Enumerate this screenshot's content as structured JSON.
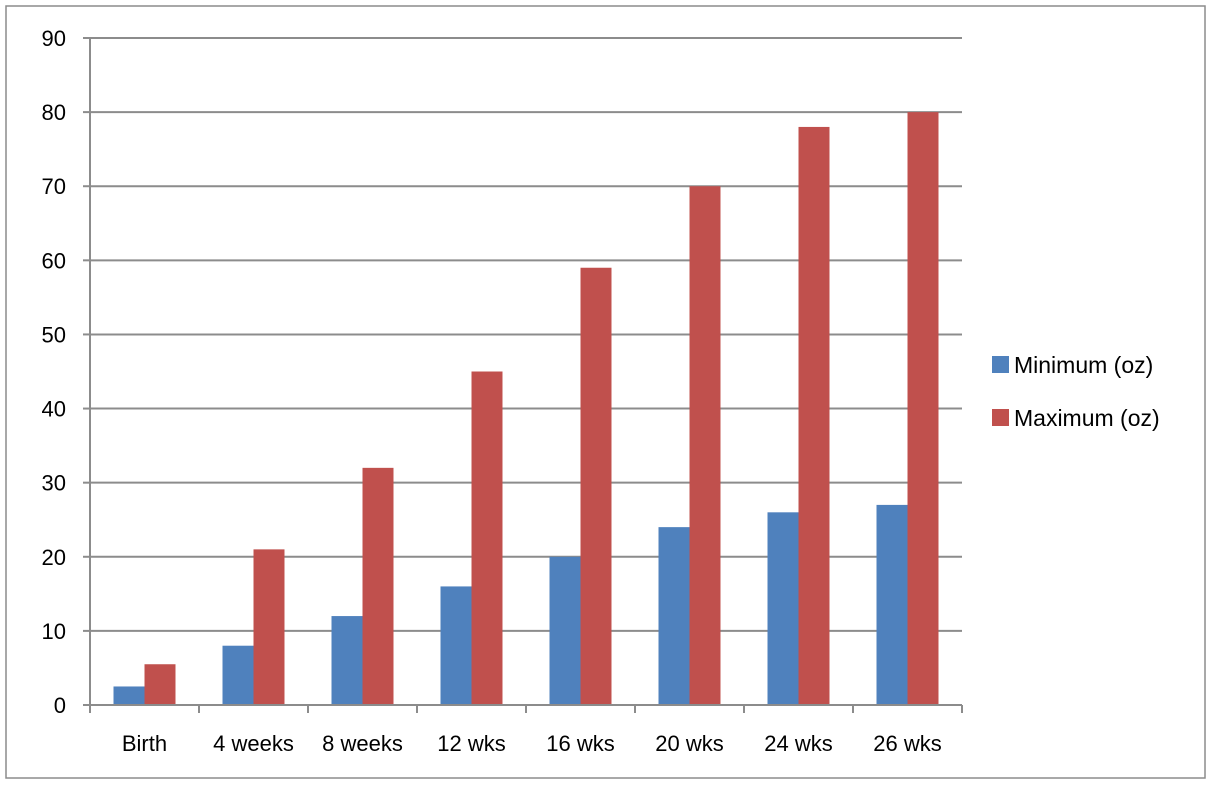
{
  "chart_data": {
    "type": "bar",
    "categories": [
      "Birth",
      "4 weeks",
      "8 weeks",
      "12 wks",
      "16 wks",
      "20 wks",
      "24 wks",
      "26 wks"
    ],
    "series": [
      {
        "name": "Minimum (oz)",
        "color": "#4f81bd",
        "values": [
          2.5,
          8,
          12,
          16,
          20,
          24,
          26,
          27
        ]
      },
      {
        "name": "Maximum (oz)",
        "color": "#c0504d",
        "values": [
          5.5,
          21,
          32,
          45,
          59,
          70,
          78,
          80
        ]
      }
    ],
    "title": "",
    "xlabel": "",
    "ylabel": "",
    "ylim": [
      0,
      90
    ],
    "yticks": [
      0,
      10,
      20,
      30,
      40,
      50,
      60,
      70,
      80,
      90
    ],
    "grid": true,
    "legend_position": "right"
  }
}
